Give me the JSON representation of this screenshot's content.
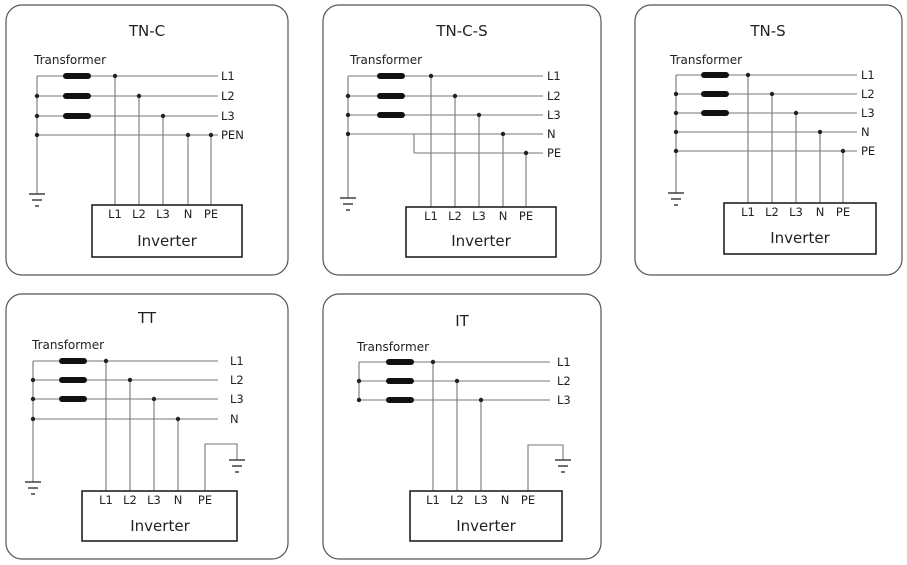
{
  "panels": [
    {
      "title": "TN-C",
      "transformer_label": "Transformer",
      "lines": [
        "L1",
        "L2",
        "L3",
        "PEN"
      ],
      "terminals": [
        "L1",
        "L2",
        "L3",
        "N",
        "PE"
      ],
      "device_label": "Inverter"
    },
    {
      "title": "TN-C-S",
      "transformer_label": "Transformer",
      "lines": [
        "L1",
        "L2",
        "L3",
        "N",
        "PE"
      ],
      "terminals": [
        "L1",
        "L2",
        "L3",
        "N",
        "PE"
      ],
      "device_label": "Inverter"
    },
    {
      "title": "TN-S",
      "transformer_label": "Transformer",
      "lines": [
        "L1",
        "L2",
        "L3",
        "N",
        "PE"
      ],
      "terminals": [
        "L1",
        "L2",
        "L3",
        "N",
        "PE"
      ],
      "device_label": "Inverter"
    },
    {
      "title": "TT",
      "transformer_label": "Transformer",
      "lines": [
        "L1",
        "L2",
        "L3",
        "N"
      ],
      "terminals": [
        "L1",
        "L2",
        "L3",
        "N",
        "PE"
      ],
      "device_label": "Inverter"
    },
    {
      "title": "IT",
      "transformer_label": "Transformer",
      "lines": [
        "L1",
        "L2",
        "L3"
      ],
      "terminals": [
        "L1",
        "L2",
        "L3",
        "N",
        "PE"
      ],
      "device_label": "Inverter"
    }
  ]
}
